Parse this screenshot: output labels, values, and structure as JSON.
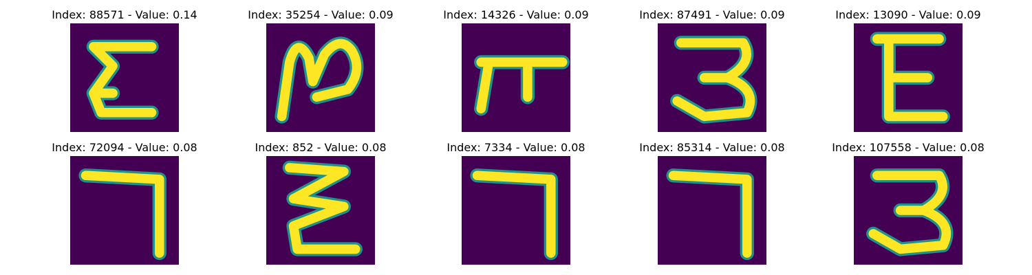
{
  "colors": {
    "background": "#440154",
    "mid": "#21918c",
    "bright": "#fde725"
  },
  "items": [
    {
      "title": "Index: 88571 - Value: 0.14",
      "glyph": "sigma"
    },
    {
      "title": "Index: 35254 - Value: 0.09",
      "glyph": "curl"
    },
    {
      "title": "Index: 14326 - Value: 0.09",
      "glyph": "pi"
    },
    {
      "title": "Index: 87491 - Value: 0.09",
      "glyph": "three"
    },
    {
      "title": "Index: 13090 - Value: 0.09",
      "glyph": "epsilon"
    },
    {
      "title": "Index: 72094 - Value: 0.08",
      "glyph": "seven"
    },
    {
      "title": "Index: 852 - Value: 0.08",
      "glyph": "zigzag"
    },
    {
      "title": "Index: 7334 - Value: 0.08",
      "glyph": "seven"
    },
    {
      "title": "Index: 85314 - Value: 0.08",
      "glyph": "seven"
    },
    {
      "title": "Index: 107558 - Value: 0.08",
      "glyph": "three"
    }
  ]
}
